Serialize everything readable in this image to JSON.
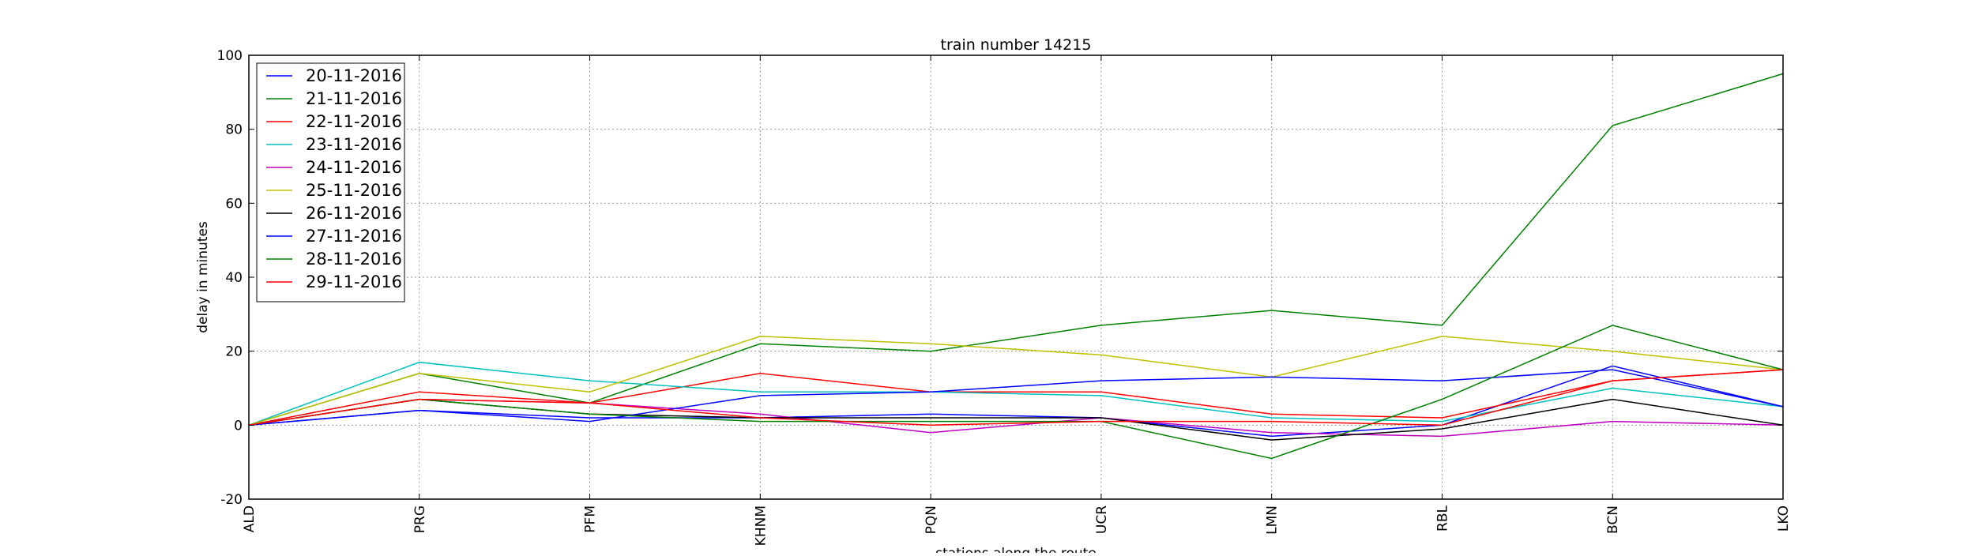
{
  "chart_data": {
    "type": "line",
    "title": "train number 14215",
    "xlabel": "stations along the route",
    "ylabel": "delay in minutes",
    "categories": [
      "ALD",
      "PRG",
      "PFM",
      "KHNM",
      "PQN",
      "UCR",
      "LMN",
      "RBL",
      "BCN",
      "LKO"
    ],
    "ylim": [
      -20,
      100
    ],
    "yticks": [
      -20,
      0,
      20,
      40,
      60,
      80,
      100
    ],
    "grid": true,
    "legend_position": "top-left",
    "series": [
      {
        "name": "20-11-2016",
        "color": "#0000ff",
        "values": [
          0,
          4,
          2,
          2,
          3,
          2,
          -3,
          0,
          16,
          5
        ]
      },
      {
        "name": "21-11-2016",
        "color": "#008000",
        "values": [
          0,
          14,
          6,
          22,
          20,
          27,
          31,
          27,
          81,
          95
        ]
      },
      {
        "name": "22-11-2016",
        "color": "#ff0000",
        "values": [
          0,
          9,
          6,
          14,
          9,
          9,
          3,
          2,
          12,
          15
        ]
      },
      {
        "name": "23-11-2016",
        "color": "#00bfbf",
        "values": [
          0,
          17,
          12,
          9,
          9,
          8,
          2,
          1,
          10,
          5
        ]
      },
      {
        "name": "24-11-2016",
        "color": "#bf00bf",
        "values": [
          0,
          7,
          6,
          3,
          -2,
          2,
          -2,
          -3,
          1,
          0
        ]
      },
      {
        "name": "25-11-2016",
        "color": "#bfbf00",
        "values": [
          0,
          14,
          9,
          24,
          22,
          19,
          13,
          24,
          20,
          15
        ]
      },
      {
        "name": "26-11-2016",
        "color": "#000000",
        "values": [
          0,
          7,
          3,
          2,
          2,
          2,
          -4,
          -1,
          7,
          0
        ]
      },
      {
        "name": "27-11-2016",
        "color": "#0000ff",
        "values": [
          0,
          4,
          1,
          8,
          9,
          12,
          13,
          12,
          15,
          5
        ]
      },
      {
        "name": "28-11-2016",
        "color": "#008000",
        "values": [
          0,
          7,
          3,
          1,
          1,
          1,
          -9,
          7,
          27,
          15
        ]
      },
      {
        "name": "29-11-2016",
        "color": "#ff0000",
        "values": [
          0,
          7,
          6,
          2,
          0,
          1,
          1,
          0,
          12,
          15
        ]
      }
    ]
  }
}
